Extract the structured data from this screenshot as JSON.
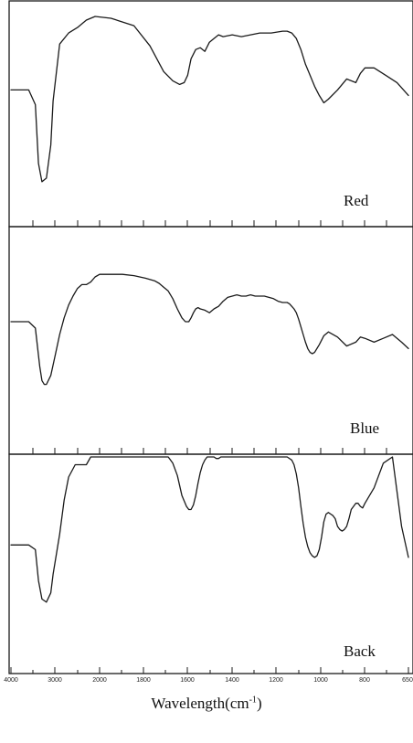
{
  "chart_data": {
    "type": "line",
    "xlabel": "Wavelength(cm⁻¹)",
    "xlim": [
      4000,
      650
    ],
    "x_ticks": [
      "4000",
      "3000",
      "2000",
      "1800",
      "1600",
      "1400",
      "1200",
      "1000",
      "800",
      "650"
    ],
    "grid": false,
    "panels": [
      {
        "label": "Red",
        "series": [
          {
            "x": [
              4000,
              3600,
              3450,
              3380,
              3300,
              3200,
              3100,
              3050,
              2900,
              2700,
              2500,
              2300,
              2100,
              1950,
              1850,
              1780,
              1720,
              1680,
              1650,
              1630,
              1615,
              1600,
              1580,
              1560,
              1540,
              1520,
              1500,
              1480,
              1460,
              1420,
              1380,
              1300,
              1250,
              1200,
              1180,
              1160,
              1140,
              1120,
              1100,
              1080,
              1060,
              1040,
              1020,
              1000,
              960,
              920,
              880,
              860,
              840,
              800,
              750,
              700,
              650
            ],
            "y": [
              0.58,
              0.58,
              0.5,
              0.18,
              0.08,
              0.1,
              0.28,
              0.52,
              0.83,
              0.89,
              0.92,
              0.96,
              0.98,
              0.97,
              0.93,
              0.82,
              0.68,
              0.63,
              0.61,
              0.62,
              0.66,
              0.75,
              0.8,
              0.81,
              0.79,
              0.84,
              0.86,
              0.88,
              0.87,
              0.88,
              0.87,
              0.89,
              0.89,
              0.9,
              0.9,
              0.89,
              0.86,
              0.8,
              0.72,
              0.66,
              0.6,
              0.55,
              0.51,
              0.53,
              0.58,
              0.64,
              0.62,
              0.67,
              0.7,
              0.7,
              0.66,
              0.62,
              0.55
            ]
          }
        ]
      },
      {
        "label": "Blue",
        "series": [
          {
            "x": [
              4000,
              3600,
              3450,
              3400,
              3350,
              3300,
              3250,
              3200,
              3100,
              3000,
              2900,
              2800,
              2700,
              2600,
              2500,
              2400,
              2300,
              2200,
              2100,
              2000,
              1900,
              1850,
              1800,
              1760,
              1740,
              1720,
              1700,
              1680,
              1660,
              1640,
              1625,
              1610,
              1600,
              1590,
              1580,
              1570,
              1560,
              1540,
              1520,
              1500,
              1480,
              1460,
              1440,
              1420,
              1400,
              1380,
              1360,
              1340,
              1320,
              1300,
              1280,
              1260,
              1240,
              1220,
              1200,
              1190,
              1180,
              1170,
              1160,
              1150,
              1140,
              1130,
              1120,
              1110,
              1100,
              1090,
              1080,
              1070,
              1060,
              1040,
              1020,
              1000,
              960,
              920,
              880,
              860,
              840,
              800,
              760,
              720,
              680,
              650
            ],
            "y": [
              0.6,
              0.6,
              0.55,
              0.4,
              0.25,
              0.14,
              0.11,
              0.11,
              0.18,
              0.34,
              0.5,
              0.63,
              0.73,
              0.8,
              0.86,
              0.89,
              0.89,
              0.91,
              0.95,
              0.97,
              0.97,
              0.96,
              0.94,
              0.92,
              0.9,
              0.87,
              0.84,
              0.78,
              0.7,
              0.63,
              0.6,
              0.6,
              0.63,
              0.67,
              0.7,
              0.71,
              0.7,
              0.69,
              0.67,
              0.7,
              0.72,
              0.76,
              0.79,
              0.8,
              0.81,
              0.8,
              0.8,
              0.81,
              0.8,
              0.8,
              0.8,
              0.79,
              0.78,
              0.76,
              0.75,
              0.75,
              0.75,
              0.74,
              0.72,
              0.7,
              0.67,
              0.62,
              0.56,
              0.5,
              0.44,
              0.39,
              0.36,
              0.35,
              0.36,
              0.42,
              0.49,
              0.52,
              0.48,
              0.41,
              0.44,
              0.48,
              0.47,
              0.44,
              0.47,
              0.5,
              0.44,
              0.39
            ]
          }
        ]
      },
      {
        "label": "Back",
        "series": [
          {
            "x": [
              4000,
              3600,
              3450,
              3380,
              3300,
              3200,
              3100,
              3050,
              2900,
              2800,
              2700,
              2550,
              2300,
              2200,
              2000,
              1800,
              1700,
              1680,
              1660,
              1640,
              1620,
              1610,
              1600,
              1590,
              1580,
              1570,
              1560,
              1550,
              1540,
              1530,
              1520,
              1510,
              1500,
              1490,
              1480,
              1470,
              1460,
              1400,
              1300,
              1200,
              1180,
              1160,
              1150,
              1140,
              1130,
              1120,
              1110,
              1100,
              1090,
              1080,
              1070,
              1060,
              1050,
              1040,
              1030,
              1020,
              1010,
              1000,
              990,
              980,
              970,
              960,
              950,
              940,
              930,
              920,
              910,
              900,
              890,
              880,
              870,
              860,
              850,
              840,
              800,
              760,
              720,
              680,
              650
            ],
            "y": [
              0.43,
              0.43,
              0.4,
              0.2,
              0.08,
              0.06,
              0.12,
              0.24,
              0.5,
              0.72,
              0.87,
              0.95,
              0.95,
              1.0,
              1.0,
              1.0,
              1.0,
              0.96,
              0.88,
              0.75,
              0.68,
              0.66,
              0.66,
              0.69,
              0.75,
              0.83,
              0.9,
              0.95,
              0.98,
              1.0,
              1.0,
              1.0,
              1.0,
              0.99,
              0.99,
              1.0,
              1.0,
              1.0,
              1.0,
              1.0,
              1.0,
              0.98,
              0.95,
              0.89,
              0.8,
              0.68,
              0.57,
              0.48,
              0.42,
              0.38,
              0.36,
              0.35,
              0.36,
              0.4,
              0.48,
              0.58,
              0.63,
              0.64,
              0.63,
              0.62,
              0.6,
              0.55,
              0.53,
              0.52,
              0.53,
              0.55,
              0.6,
              0.66,
              0.68,
              0.7,
              0.7,
              0.68,
              0.67,
              0.7,
              0.8,
              0.96,
              1.0,
              0.55,
              0.35
            ]
          }
        ]
      }
    ]
  }
}
